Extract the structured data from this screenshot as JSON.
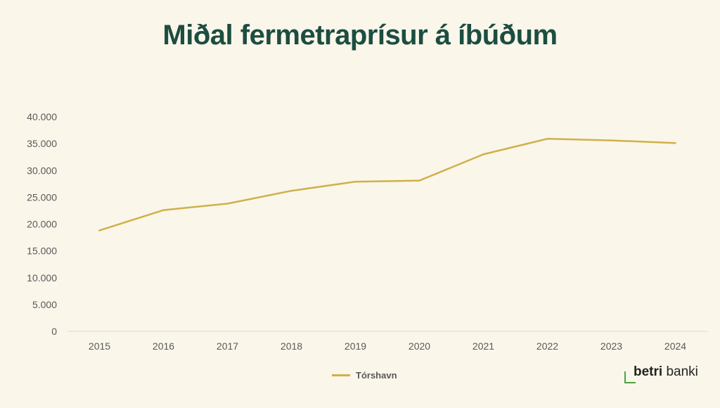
{
  "title": "Miðal fermetraprísur á íbúðum",
  "legend": {
    "label": "Tórshavn"
  },
  "logo": {
    "strong": "betri",
    "rest": " banki"
  },
  "colors": {
    "line": "#d1b04a",
    "title": "#1d4d41",
    "logo_accent": "#4fa246"
  },
  "chart_data": {
    "type": "line",
    "title": "Miðal fermetraprísur á íbúðum",
    "xlabel": "",
    "ylabel": "",
    "x": [
      "2015",
      "2016",
      "2017",
      "2018",
      "2019",
      "2020",
      "2021",
      "2022",
      "2023",
      "2024"
    ],
    "series": [
      {
        "name": "Tórshavn",
        "values": [
          18800,
          22600,
          23800,
          26200,
          27900,
          28100,
          33000,
          35900,
          35600,
          35100
        ]
      }
    ],
    "yticks": [
      "0",
      "5.000",
      "10.000",
      "15.000",
      "20.000",
      "25.000",
      "30.000",
      "35.000",
      "40.000"
    ],
    "ylim": [
      0,
      40000
    ],
    "grid": false,
    "legend_position": "bottom"
  }
}
